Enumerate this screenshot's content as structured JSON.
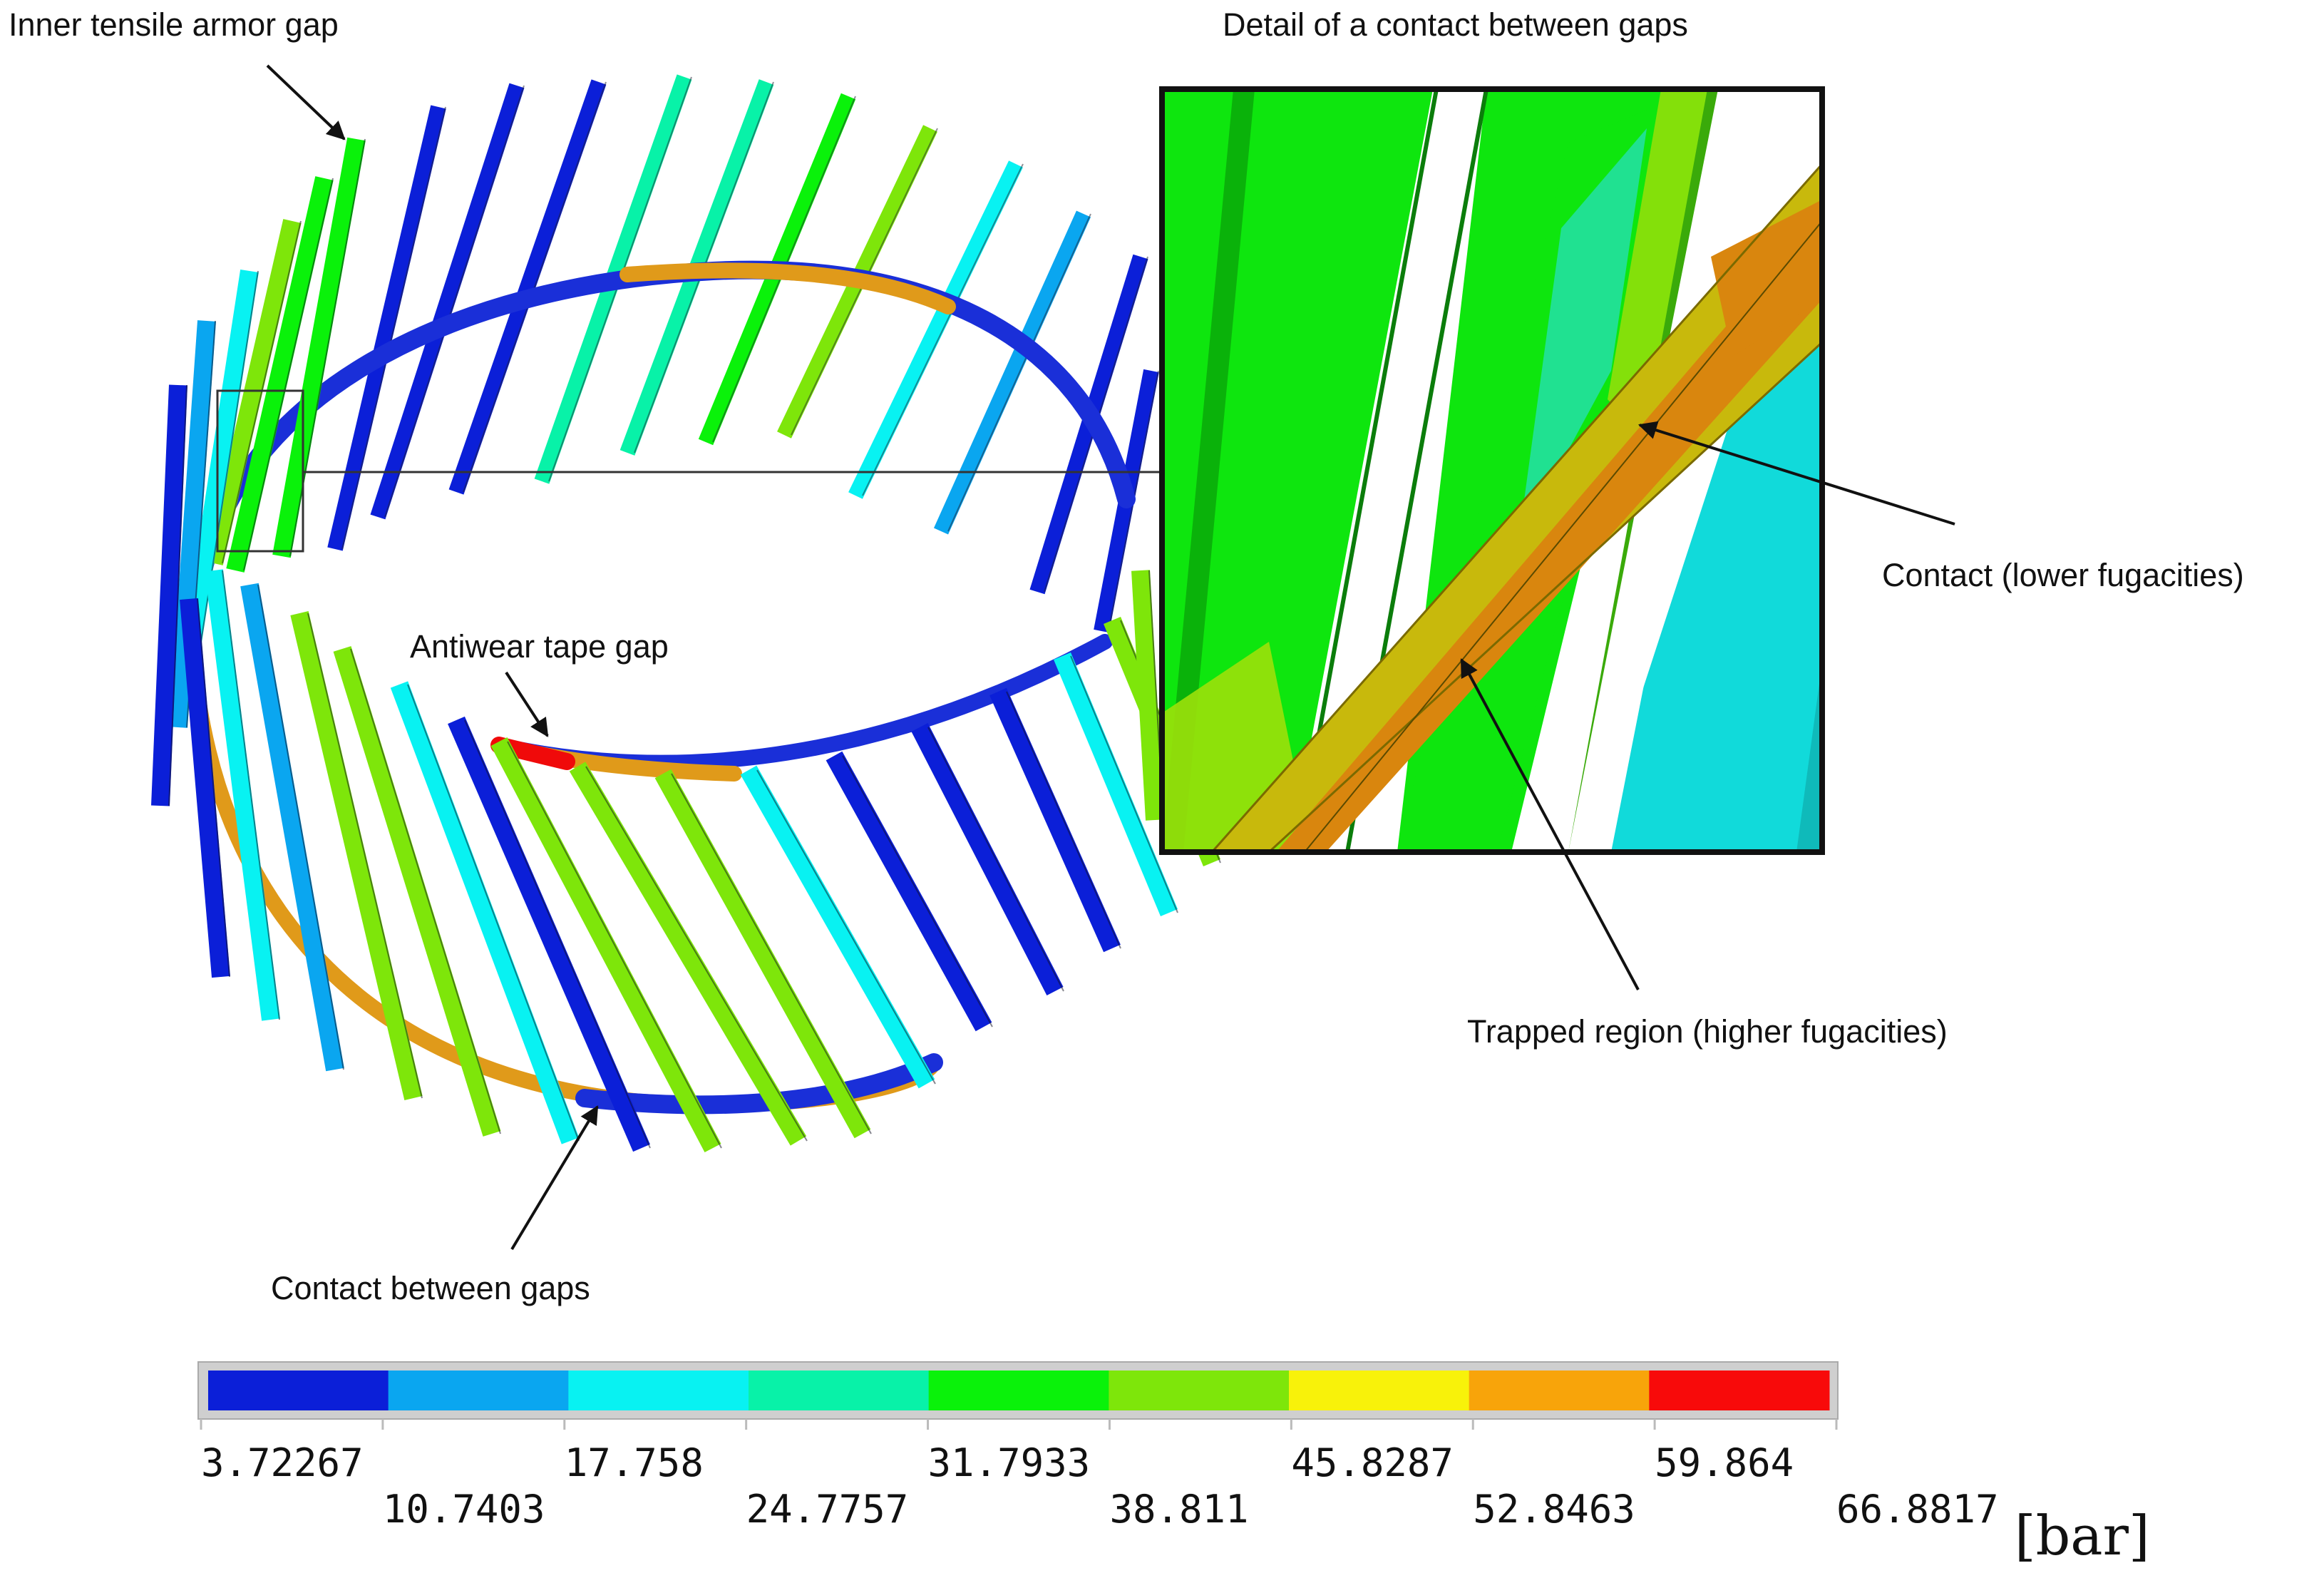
{
  "annotations": {
    "inner_gap": "Inner tensile armor gap",
    "antiwear_gap": "Antiwear tape gap",
    "contact_between": "Contact between gaps",
    "detail_title": "Detail of a contact between gaps",
    "contact_lower": "Contact (lower fugacities)",
    "trapped_region": "Trapped region (higher fugacities)"
  },
  "colorbar": {
    "colors": [
      "#0b1fd8",
      "#0aa6f0",
      "#08f2f2",
      "#08f2a8",
      "#0af20a",
      "#7ee60a",
      "#f8f20a",
      "#f8a40a",
      "#f80a0a"
    ],
    "tick_labels": [
      "3.72267",
      "10.7403",
      "17.758",
      "24.7757",
      "31.7933",
      "38.811",
      "45.8287",
      "52.8463",
      "59.864",
      "66.8817"
    ],
    "unit": "[bar]"
  }
}
